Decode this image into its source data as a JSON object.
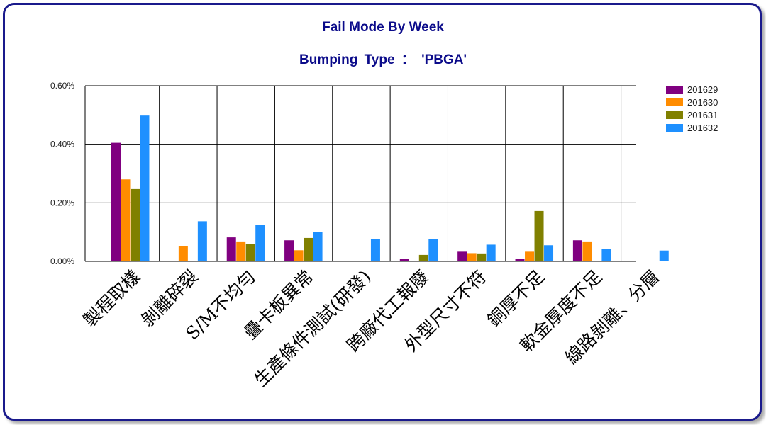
{
  "chart_data": {
    "type": "bar",
    "title": "Fail Mode By Week",
    "subtitle": "Bumping  Type  ：  'PBGA'",
    "xlabel": "",
    "ylabel": "",
    "ylim": [
      0,
      0.6
    ],
    "yticks": [
      "0.00%",
      "0.20%",
      "0.40%",
      "0.60%"
    ],
    "ytick_values": [
      0,
      0.2,
      0.4,
      0.6
    ],
    "grid": true,
    "legend_position": "top-right",
    "categories": [
      "製程取樣",
      "剝離碎裂",
      "S/M不均勻",
      "疊卡板異常",
      "生產條件測試(研發)",
      "跨廠代工報廢",
      "外型尺寸不符",
      "銅厚不足",
      "軟金厚度不足",
      "線路剝離、分層"
    ],
    "series": [
      {
        "name": "201629",
        "color": "#800080",
        "values": [
          0.405,
          0,
          0.082,
          0.072,
          0,
          0.008,
          0.033,
          0.008,
          0.072,
          0
        ]
      },
      {
        "name": "201630",
        "color": "#ff8c00",
        "values": [
          0.28,
          0.053,
          0.068,
          0.038,
          0,
          0,
          0.028,
          0.033,
          0.068,
          0
        ]
      },
      {
        "name": "201631",
        "color": "#808000",
        "values": [
          0.247,
          0,
          0.06,
          0.08,
          0,
          0.022,
          0.027,
          0.172,
          0,
          0
        ]
      },
      {
        "name": "201632",
        "color": "#1e90ff",
        "values": [
          0.498,
          0.137,
          0.125,
          0.1,
          0.077,
          0.077,
          0.057,
          0.055,
          0.043,
          0.037
        ]
      }
    ]
  }
}
